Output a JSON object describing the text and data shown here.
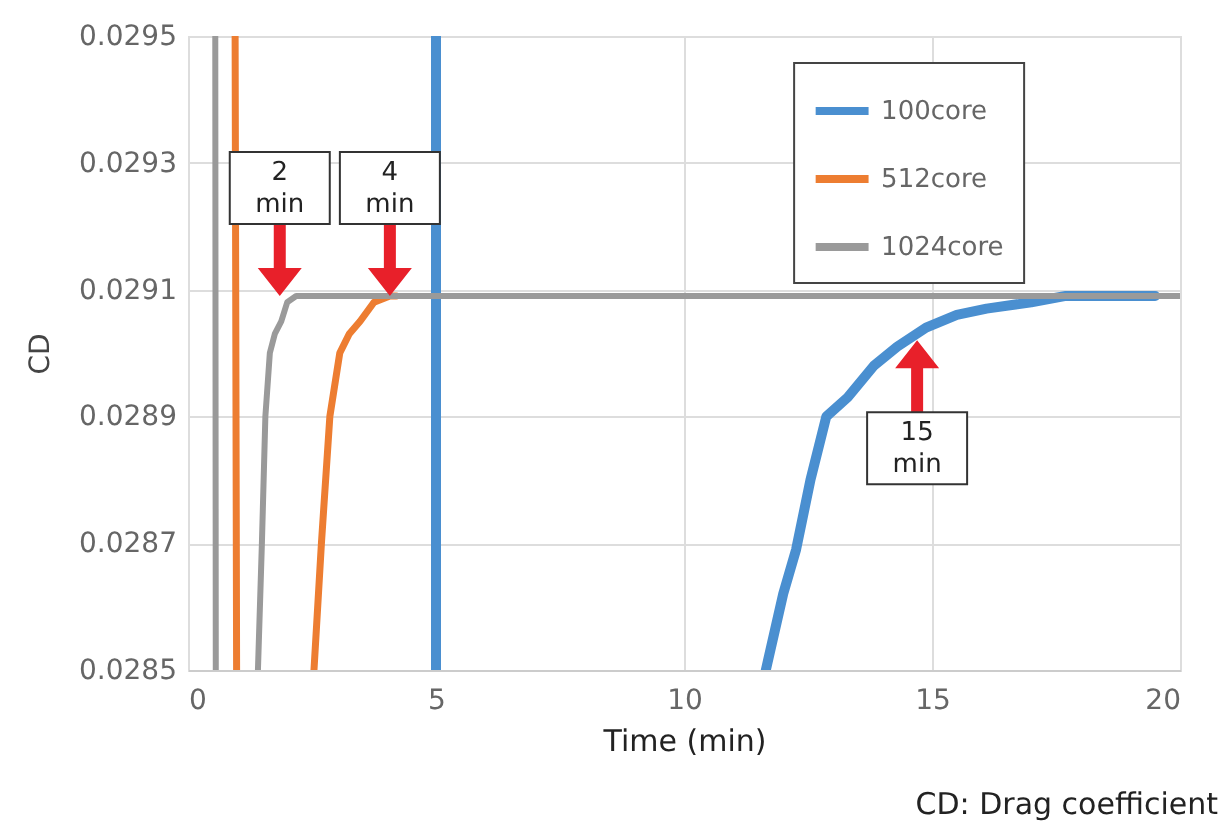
{
  "chart_data": {
    "type": "line",
    "xlabel": "Time (min)",
    "ylabel": "CD",
    "xlim": [
      0,
      20
    ],
    "xticks": [
      0,
      5,
      10,
      15,
      20
    ],
    "ylim": [
      0.0285,
      0.0295
    ],
    "yticks": [
      0.0285,
      0.0287,
      0.0289,
      0.0291,
      0.0293,
      0.0295
    ],
    "grid": true,
    "legend": "top right",
    "series": [
      {
        "name": "100core",
        "color": "#4a8fd0",
        "x": [
          5.0,
          5.0,
          8,
          11.65,
          12.0,
          12.26,
          12.55,
          12.87,
          13.3,
          13.83,
          14.3,
          14.88,
          15.5,
          16.1,
          17.0,
          17.7,
          19.5
        ],
        "values": [
          0.0295,
          0.0285,
          null,
          0.0285,
          0.02862,
          0.02869,
          0.0288,
          0.0289,
          0.02893,
          0.02898,
          0.02901,
          0.02904,
          0.02906,
          0.02907,
          0.02908,
          0.02909,
          0.02909
        ]
      },
      {
        "name": "512core",
        "color": "#ed7d31",
        "x": [
          0.95,
          0.98,
          2.0,
          2.54,
          2.69,
          2.86,
          3.06,
          3.25,
          3.47,
          3.75,
          4.07,
          4.2
        ],
        "values": [
          0.0295,
          0.0285,
          null,
          0.0285,
          0.0287,
          0.0289,
          0.029,
          0.02903,
          0.02905,
          0.02908,
          0.02909,
          0.02909
        ]
      },
      {
        "name": "1024core",
        "color": "#9a9a9a",
        "x": [
          0.55,
          0.56,
          1.0,
          1.41,
          1.49,
          1.56,
          1.65,
          1.75,
          1.88,
          2.0,
          2.18,
          5,
          10,
          15,
          20
        ],
        "values": [
          0.0295,
          0.0285,
          null,
          0.0285,
          0.0287,
          0.0289,
          0.029,
          0.02903,
          0.02905,
          0.02908,
          0.02909,
          0.02909,
          0.02909,
          0.02909,
          0.02909
        ]
      }
    ],
    "annotations": [
      {
        "text": "2 min",
        "x": 1.85,
        "y": 0.02909
      },
      {
        "text": "4 min",
        "x": 4.07,
        "y": 0.02909
      },
      {
        "text": "15 min",
        "x": 14.7,
        "y": 0.02902
      },
      "CD: Drag coefficient"
    ]
  }
}
